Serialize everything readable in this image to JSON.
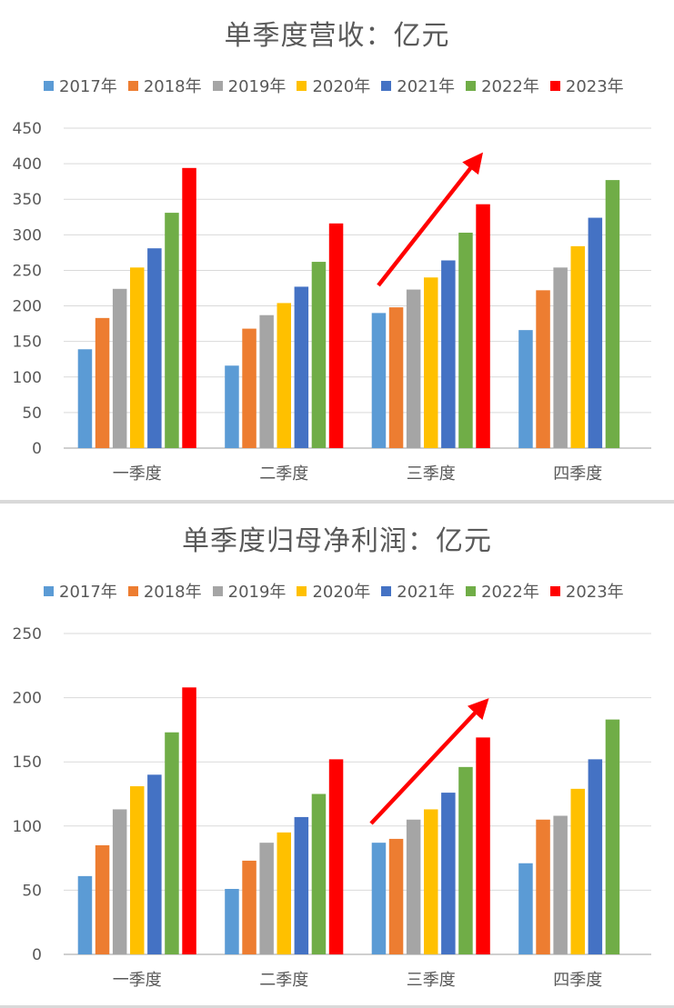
{
  "chart_data": [
    {
      "type": "bar",
      "title": "单季度营收：亿元",
      "categories": [
        "一季度",
        "二季度",
        "三季度",
        "四季度"
      ],
      "ylim": [
        0,
        450
      ],
      "yticks": [
        0,
        50,
        100,
        150,
        200,
        250,
        300,
        350,
        400,
        450
      ],
      "grid": true,
      "legend_position": "top",
      "series": [
        {
          "name": "2017年",
          "color": "#5B9BD5",
          "values": [
            139,
            116,
            190,
            166
          ]
        },
        {
          "name": "2018年",
          "color": "#ED7D31",
          "values": [
            183,
            168,
            198,
            222
          ]
        },
        {
          "name": "2019年",
          "color": "#A5A5A5",
          "values": [
            224,
            187,
            223,
            254
          ]
        },
        {
          "name": "2020年",
          "color": "#FFC000",
          "values": [
            254,
            204,
            240,
            284
          ]
        },
        {
          "name": "2021年",
          "color": "#4472C4",
          "values": [
            281,
            227,
            264,
            324
          ]
        },
        {
          "name": "2022年",
          "color": "#70AD47",
          "values": [
            331,
            262,
            303,
            377
          ]
        },
        {
          "name": "2023年",
          "color": "#FF0000",
          "values": [
            394,
            316,
            343,
            null
          ]
        }
      ],
      "annotation": {
        "type": "arrow",
        "color": "#FF0000",
        "near_category": "三季度",
        "direction": "up-right"
      }
    },
    {
      "type": "bar",
      "title": "单季度归母净利润：亿元",
      "categories": [
        "一季度",
        "二季度",
        "三季度",
        "四季度"
      ],
      "ylim": [
        0,
        250
      ],
      "yticks": [
        0,
        50,
        100,
        150,
        200,
        250
      ],
      "grid": true,
      "legend_position": "top",
      "series": [
        {
          "name": "2017年",
          "color": "#5B9BD5",
          "values": [
            61,
            51,
            87,
            71
          ]
        },
        {
          "name": "2018年",
          "color": "#ED7D31",
          "values": [
            85,
            73,
            90,
            105
          ]
        },
        {
          "name": "2019年",
          "color": "#A5A5A5",
          "values": [
            113,
            87,
            105,
            108
          ]
        },
        {
          "name": "2020年",
          "color": "#FFC000",
          "values": [
            131,
            95,
            113,
            129
          ]
        },
        {
          "name": "2021年",
          "color": "#4472C4",
          "values": [
            140,
            107,
            126,
            152
          ]
        },
        {
          "name": "2022年",
          "color": "#70AD47",
          "values": [
            173,
            125,
            146,
            183
          ]
        },
        {
          "name": "2023年",
          "color": "#FF0000",
          "values": [
            208,
            152,
            169,
            null
          ]
        }
      ],
      "annotation": {
        "type": "arrow",
        "color": "#FF0000",
        "near_category": "三季度",
        "direction": "up-right"
      }
    }
  ]
}
